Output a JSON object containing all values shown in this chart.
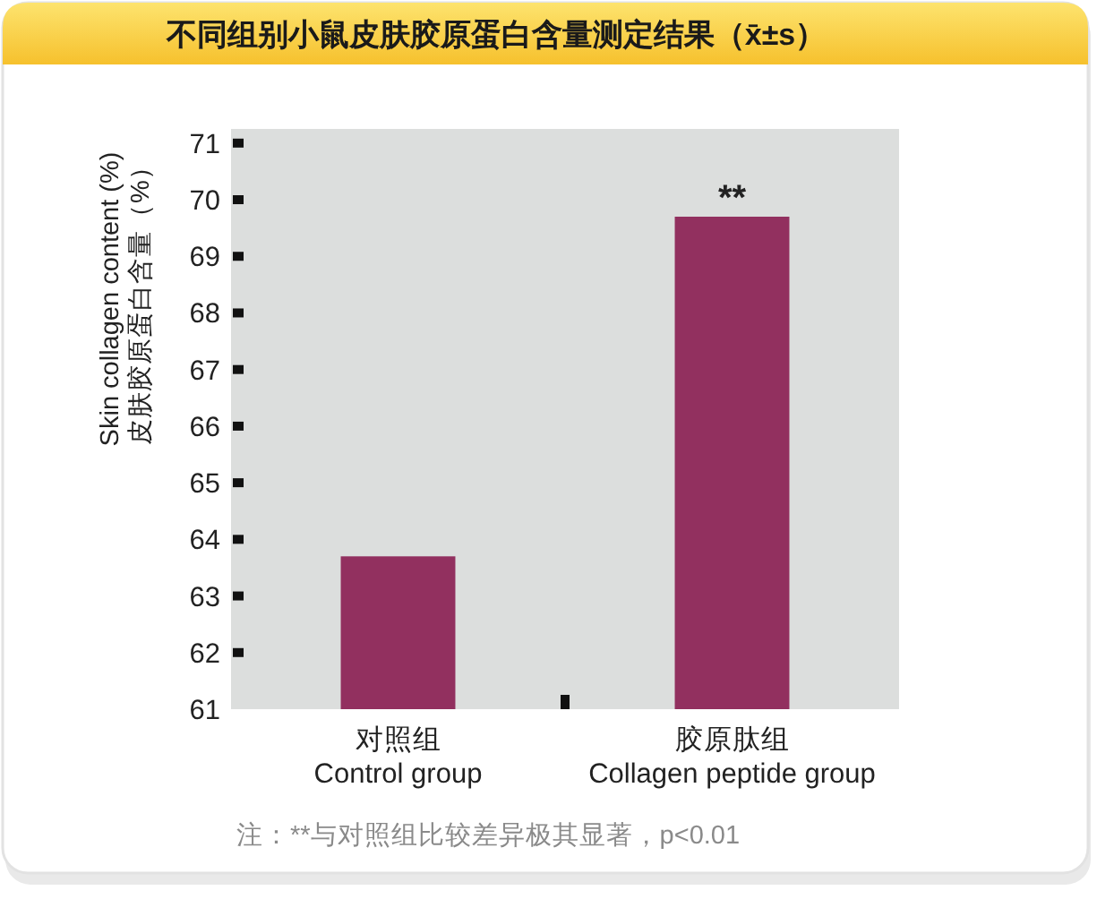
{
  "chart_data": {
    "type": "bar",
    "title": "不同组别小鼠皮肤胶原蛋白含量测定结果（x̄±s）",
    "ylabel": "Skin collagen content (%)\n皮肤胶原蛋白含量（%）",
    "categories": [
      "对照组\nControl group",
      "胶原肽组\nCollagen peptide group"
    ],
    "values": [
      63.7,
      69.7
    ],
    "color": "#92305f",
    "ylim": [
      61,
      71.25
    ],
    "yticks": [
      61,
      62,
      63,
      64,
      65,
      66,
      67,
      68,
      69,
      70,
      71
    ],
    "annotations": [
      {
        "text": "**",
        "x": "胶原肽组\nCollagen peptide group",
        "y": 69.7
      },
      "注：**与对照组比较差异极其显著，p<0.01"
    ]
  }
}
